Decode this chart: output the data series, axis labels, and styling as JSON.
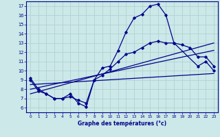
{
  "xlabel": "Graphe des températures (°c)",
  "bg_color": "#cce8e8",
  "line_color": "#00008b",
  "grid_color": "#aacfcf",
  "xlim": [
    -0.5,
    23.5
  ],
  "ylim": [
    5.5,
    17.5
  ],
  "xticks": [
    0,
    1,
    2,
    3,
    4,
    5,
    6,
    7,
    8,
    9,
    10,
    11,
    12,
    13,
    14,
    15,
    16,
    17,
    18,
    19,
    20,
    21,
    22,
    23
  ],
  "yticks": [
    6,
    7,
    8,
    9,
    10,
    11,
    12,
    13,
    14,
    15,
    16,
    17
  ],
  "line1_x": [
    0,
    1,
    2,
    3,
    4,
    5,
    6,
    7,
    8,
    9,
    10,
    11,
    12,
    13,
    14,
    15,
    16,
    17,
    18,
    21,
    22,
    23
  ],
  "line1_y": [
    9.2,
    8.0,
    7.5,
    7.0,
    7.0,
    7.5,
    6.5,
    6.1,
    9.0,
    10.3,
    10.5,
    12.2,
    14.2,
    15.7,
    16.1,
    17.0,
    17.2,
    16.0,
    13.0,
    10.5,
    11.0,
    10.0
  ],
  "line2_x": [
    0,
    1,
    2,
    3,
    4,
    5,
    6,
    7,
    8,
    9,
    10,
    11,
    12,
    13,
    14,
    15,
    16,
    17,
    18,
    19,
    20,
    21,
    22,
    23
  ],
  "line2_y": [
    9.0,
    7.8,
    7.5,
    7.0,
    7.0,
    7.2,
    6.8,
    6.5,
    9.0,
    9.5,
    10.2,
    11.0,
    11.8,
    12.0,
    12.5,
    13.0,
    13.2,
    13.0,
    13.0,
    12.8,
    12.5,
    11.5,
    11.5,
    10.5
  ],
  "line3_x": [
    0,
    23
  ],
  "line3_y": [
    8.5,
    9.7
  ],
  "line4_x": [
    0,
    23
  ],
  "line4_y": [
    8.0,
    12.2
  ],
  "line5_x": [
    0,
    23
  ],
  "line5_y": [
    7.5,
    13.0
  ]
}
